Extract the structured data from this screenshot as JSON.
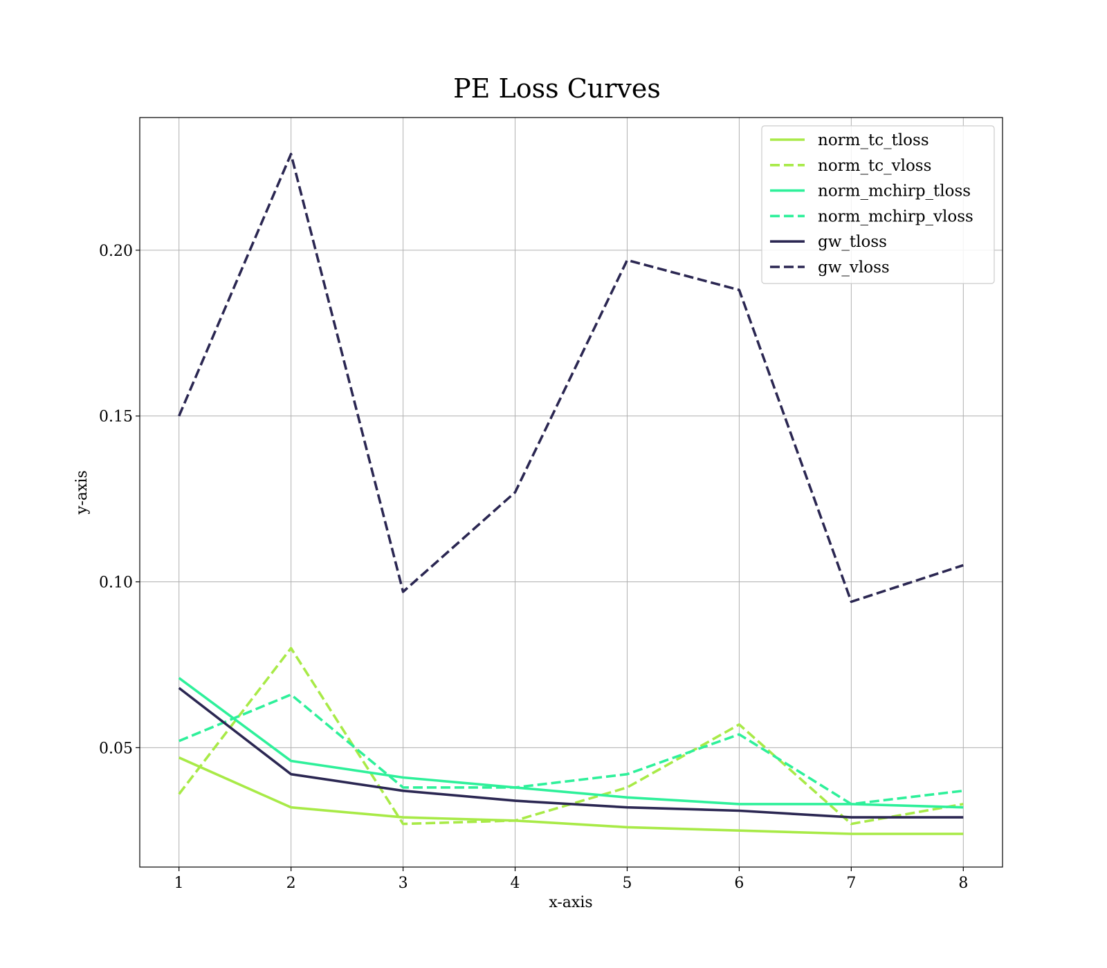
{
  "chart_data": {
    "type": "line",
    "title": "PE Loss Curves",
    "xlabel": "x-axis",
    "ylabel": "y-axis",
    "x": [
      1,
      2,
      3,
      4,
      5,
      6,
      7,
      8
    ],
    "xlim": [
      0.65,
      8.35
    ],
    "ylim": [
      0.014,
      0.24
    ],
    "xticks": [
      "1",
      "2",
      "3",
      "4",
      "5",
      "6",
      "7",
      "8"
    ],
    "yticks": [
      "0.05",
      "0.10",
      "0.15",
      "0.20"
    ],
    "grid": true,
    "legend_position": "top-right",
    "series": [
      {
        "name": "norm_tc_tloss",
        "color": "#a8ea47",
        "dash": false,
        "values": [
          0.047,
          0.032,
          0.029,
          0.028,
          0.026,
          0.025,
          0.024,
          0.024
        ]
      },
      {
        "name": "norm_tc_vloss",
        "color": "#a8ea47",
        "dash": true,
        "values": [
          0.036,
          0.08,
          0.027,
          0.028,
          0.038,
          0.057,
          0.027,
          0.033
        ]
      },
      {
        "name": "norm_mchirp_tloss",
        "color": "#2ef09a",
        "dash": false,
        "values": [
          0.071,
          0.046,
          0.041,
          0.038,
          0.035,
          0.033,
          0.033,
          0.032
        ]
      },
      {
        "name": "norm_mchirp_vloss",
        "color": "#2ef09a",
        "dash": true,
        "values": [
          0.052,
          0.066,
          0.038,
          0.038,
          0.042,
          0.054,
          0.033,
          0.037
        ]
      },
      {
        "name": "gw_tloss",
        "color": "#2b2752",
        "dash": false,
        "values": [
          0.068,
          0.042,
          0.037,
          0.034,
          0.032,
          0.031,
          0.029,
          0.029
        ]
      },
      {
        "name": "gw_vloss",
        "color": "#2b2752",
        "dash": true,
        "values": [
          0.15,
          0.229,
          0.097,
          0.127,
          0.197,
          0.188,
          0.094,
          0.105
        ]
      }
    ]
  }
}
